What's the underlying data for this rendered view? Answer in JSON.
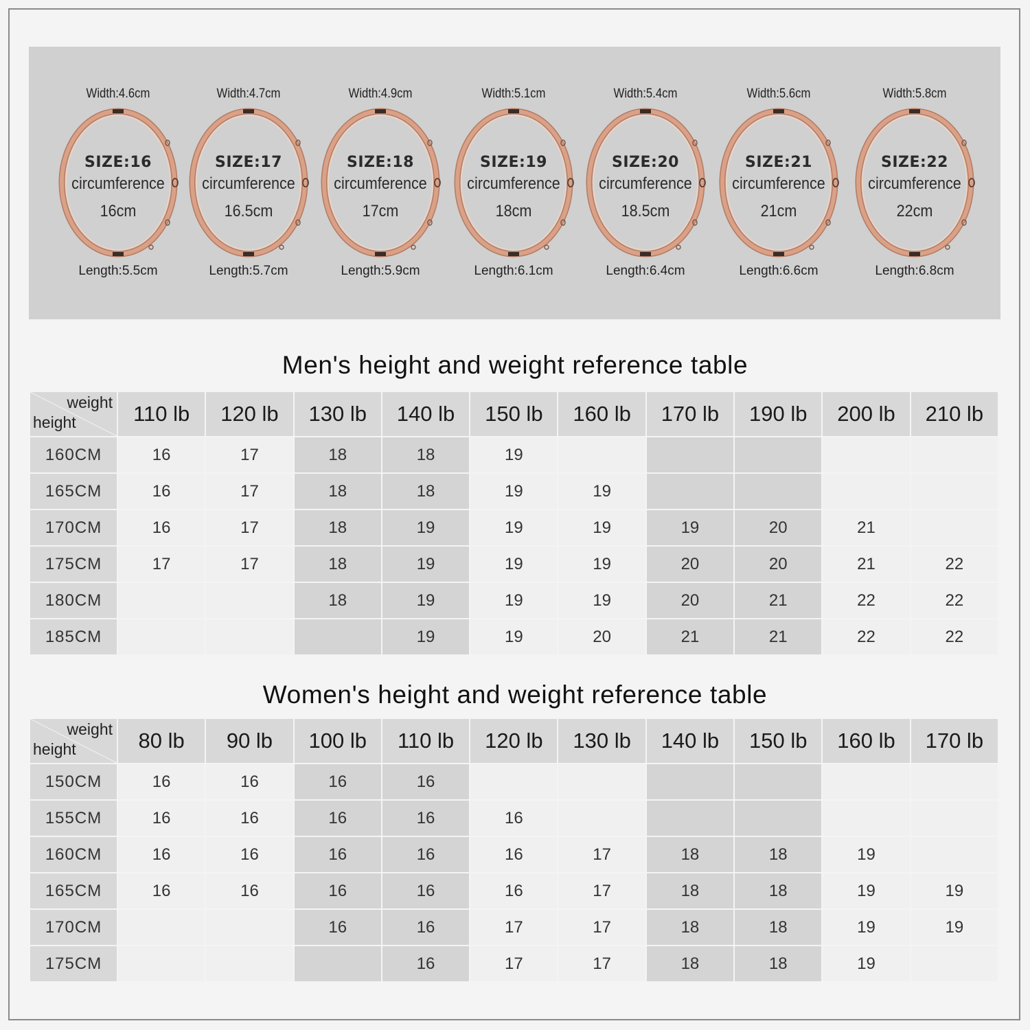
{
  "bangles": [
    {
      "width": "Width:4.6cm",
      "size": "SIZE:16",
      "circ_label": "circumference",
      "circ_value": "16cm",
      "length": "Length:5.5cm"
    },
    {
      "width": "Width:4.7cm",
      "size": "SIZE:17",
      "circ_label": "circumference",
      "circ_value": "16.5cm",
      "length": "Length:5.7cm"
    },
    {
      "width": "Width:4.9cm",
      "size": "SIZE:18",
      "circ_label": "circumference",
      "circ_value": "17cm",
      "length": "Length:5.9cm"
    },
    {
      "width": "Width:5.1cm",
      "size": "SIZE:19",
      "circ_label": "circumference",
      "circ_value": "18cm",
      "length": "Length:6.1cm"
    },
    {
      "width": "Width:5.4cm",
      "size": "SIZE:20",
      "circ_label": "circumference",
      "circ_value": "18.5cm",
      "length": "Length:6.4cm"
    },
    {
      "width": "Width:5.6cm",
      "size": "SIZE:21",
      "circ_label": "circumference",
      "circ_value": "21cm",
      "length": "Length:6.6cm"
    },
    {
      "width": "Width:5.8cm",
      "size": "SIZE:22",
      "circ_label": "circumference",
      "circ_value": "22cm",
      "length": "Length:6.8cm"
    }
  ],
  "colors": {
    "bangle_gold": "#d9a187",
    "bangle_dark": "#b57a60",
    "panel_bg": "#d0d0d0",
    "shaded_cell": "#d4d4d4"
  },
  "men": {
    "title": "Men's height and weight reference table",
    "corner_weight": "weight",
    "corner_height": "height",
    "weights": [
      "110 lb",
      "120 lb",
      "130 lb",
      "140 lb",
      "150 lb",
      "160 lb",
      "170 lb",
      "190 lb",
      "200 lb",
      "210 lb"
    ],
    "rows": [
      {
        "height": "160CM",
        "cells": [
          "16",
          "17",
          "18",
          "18",
          "19",
          "",
          "",
          "",
          "",
          ""
        ]
      },
      {
        "height": "165CM",
        "cells": [
          "16",
          "17",
          "18",
          "18",
          "19",
          "19",
          "",
          "",
          "",
          ""
        ]
      },
      {
        "height": "170CM",
        "cells": [
          "16",
          "17",
          "18",
          "19",
          "19",
          "19",
          "19",
          "20",
          "21",
          ""
        ]
      },
      {
        "height": "175CM",
        "cells": [
          "17",
          "17",
          "18",
          "19",
          "19",
          "19",
          "20",
          "20",
          "21",
          "22"
        ]
      },
      {
        "height": "180CM",
        "cells": [
          "",
          "",
          "18",
          "19",
          "19",
          "19",
          "20",
          "21",
          "22",
          "22"
        ]
      },
      {
        "height": "185CM",
        "cells": [
          "",
          "",
          "",
          "19",
          "19",
          "20",
          "21",
          "21",
          "22",
          "22"
        ]
      }
    ]
  },
  "women": {
    "title": "Women's height and weight reference table",
    "corner_weight": "weight",
    "corner_height": "height",
    "weights": [
      "80 lb",
      "90 lb",
      "100 lb",
      "110 lb",
      "120 lb",
      "130 lb",
      "140 lb",
      "150 lb",
      "160 lb",
      "170 lb"
    ],
    "rows": [
      {
        "height": "150CM",
        "cells": [
          "16",
          "16",
          "16",
          "16",
          "",
          "",
          "",
          "",
          "",
          ""
        ]
      },
      {
        "height": "155CM",
        "cells": [
          "16",
          "16",
          "16",
          "16",
          "16",
          "",
          "",
          "",
          "",
          ""
        ]
      },
      {
        "height": "160CM",
        "cells": [
          "16",
          "16",
          "16",
          "16",
          "16",
          "17",
          "18",
          "18",
          "19",
          ""
        ]
      },
      {
        "height": "165CM",
        "cells": [
          "16",
          "16",
          "16",
          "16",
          "16",
          "17",
          "18",
          "18",
          "19",
          "19"
        ]
      },
      {
        "height": "170CM",
        "cells": [
          "",
          "",
          "16",
          "16",
          "17",
          "17",
          "18",
          "18",
          "19",
          "19"
        ]
      },
      {
        "height": "175CM",
        "cells": [
          "",
          "",
          "",
          "16",
          "17",
          "17",
          "18",
          "18",
          "19",
          ""
        ]
      }
    ]
  }
}
